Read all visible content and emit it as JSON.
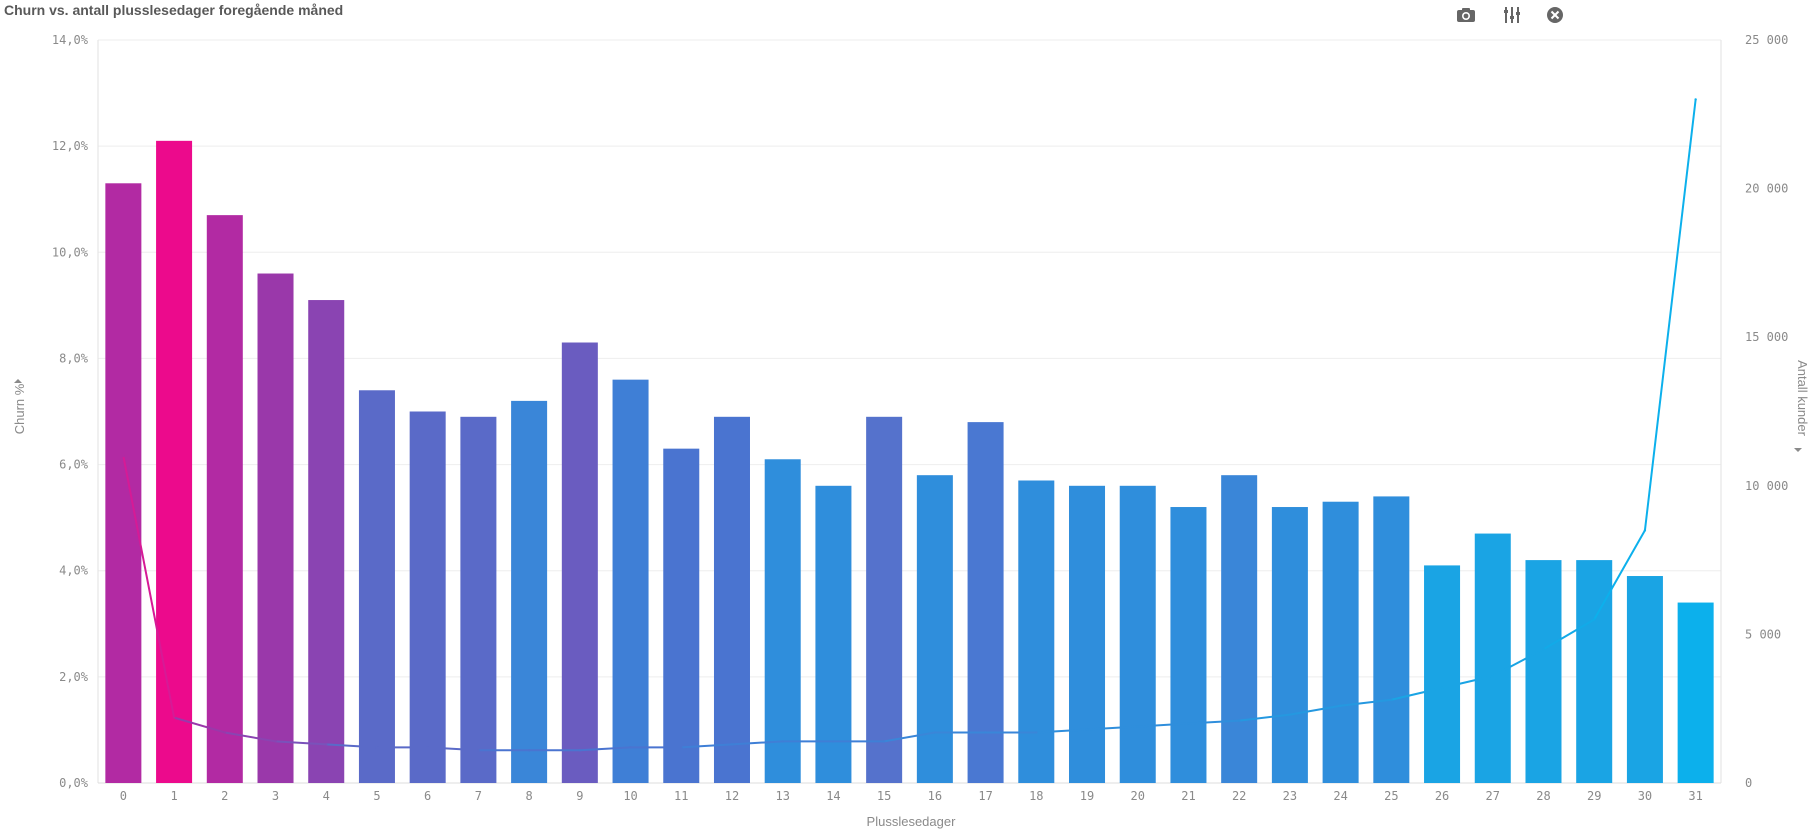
{
  "title": "Churn vs. antall plusslesedager foregående måned",
  "toolbar": {
    "camera_icon": "camera-icon",
    "settings_icon": "sliders-icon",
    "close_icon": "close-icon"
  },
  "chart_data": {
    "type": "bar+line",
    "title": "Churn vs. antall plusslesedager foregående måned",
    "xlabel": "Plusslesedager",
    "ylabel_left": "Churn %",
    "ylabel_right": "Antall kunder",
    "categories": [
      "0",
      "1",
      "2",
      "3",
      "4",
      "5",
      "6",
      "7",
      "8",
      "9",
      "10",
      "11",
      "12",
      "13",
      "14",
      "15",
      "16",
      "17",
      "18",
      "19",
      "20",
      "21",
      "22",
      "23",
      "24",
      "25",
      "26",
      "27",
      "28",
      "29",
      "30",
      "31"
    ],
    "left_axis": {
      "ylim": [
        0,
        14
      ],
      "ticks": [
        "0,0%",
        "2,0%",
        "4,0%",
        "6,0%",
        "8,0%",
        "10,0%",
        "12,0%",
        "14,0%"
      ]
    },
    "right_axis": {
      "ylim": [
        0,
        25000
      ],
      "ticks": [
        "0",
        "5 000",
        "10 000",
        "15 000",
        "20 000",
        "25 000"
      ]
    },
    "series": [
      {
        "name": "Churn %",
        "kind": "bar",
        "axis": "left",
        "values": [
          11.3,
          12.1,
          10.7,
          9.6,
          9.1,
          7.4,
          7.0,
          6.9,
          7.2,
          8.3,
          7.6,
          6.3,
          6.9,
          6.1,
          5.6,
          6.9,
          5.8,
          6.8,
          5.7,
          5.6,
          5.6,
          5.2,
          5.8,
          5.2,
          5.3,
          5.4,
          4.1,
          4.7,
          4.2,
          4.2,
          3.9,
          3.4
        ],
        "colors": [
          "#b22aa3",
          "#ec0a8c",
          "#b22aa3",
          "#9a38aa",
          "#8a44b2",
          "#5a6ac8",
          "#5a6ac8",
          "#5a6ac8",
          "#3a86d8",
          "#6a5cc0",
          "#3f7fd6",
          "#4a74d0",
          "#4a74d0",
          "#2f8edc",
          "#2f8edc",
          "#5572cc",
          "#2f8edc",
          "#4a78d2",
          "#2f8edc",
          "#2f8edc",
          "#2f8edc",
          "#2f8edc",
          "#3a86d8",
          "#2f8edc",
          "#2f8edc",
          "#2f8edc",
          "#1aa4e4",
          "#1aa4e4",
          "#1aa4e4",
          "#1aa4e4",
          "#1aa4e4",
          "#0cb0ec"
        ]
      },
      {
        "name": "Antall kunder",
        "kind": "line",
        "axis": "right",
        "values": [
          11000,
          2200,
          1700,
          1400,
          1300,
          1200,
          1200,
          1100,
          1100,
          1100,
          1200,
          1200,
          1300,
          1400,
          1400,
          1400,
          1700,
          1700,
          1700,
          1800,
          1900,
          2000,
          2100,
          2300,
          2600,
          2800,
          3200,
          3600,
          4500,
          5500,
          8500,
          23000
        ],
        "colors": [
          "#b22aa3",
          "#d61a96",
          "#9a38aa",
          "#8a44b2",
          "#7a52ba",
          "#5a6ac8",
          "#5a6ac8",
          "#5a6ac8",
          "#4a74d0",
          "#4a74d0",
          "#4a74d0",
          "#4a74d0",
          "#3f7fd6",
          "#3f7fd6",
          "#3f7fd6",
          "#3f7fd6",
          "#3a86d8",
          "#3a86d8",
          "#3a86d8",
          "#2f8edc",
          "#2f8edc",
          "#2f8edc",
          "#2f8edc",
          "#2598e0",
          "#2598e0",
          "#2598e0",
          "#1aa4e4",
          "#1aa4e4",
          "#1aa4e4",
          "#12aae8",
          "#0cb0ec",
          "#0cb0ec"
        ]
      }
    ],
    "grid": true,
    "legend": "none"
  }
}
